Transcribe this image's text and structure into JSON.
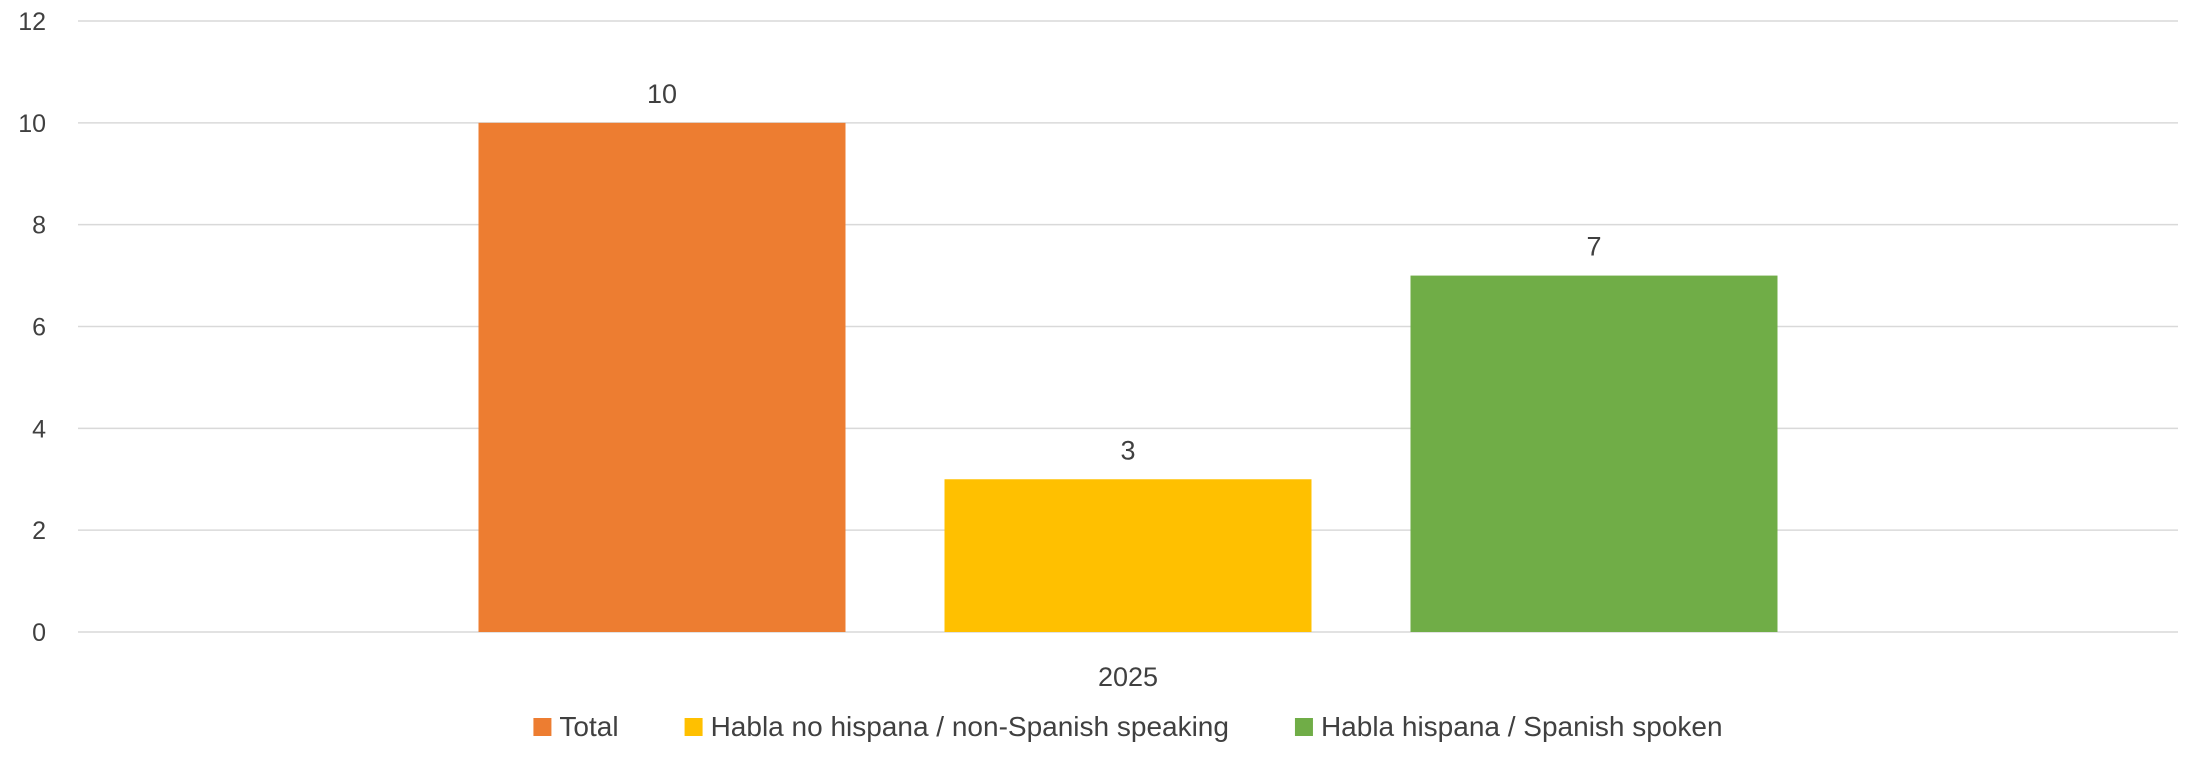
{
  "chart_data": {
    "type": "bar",
    "categories": [
      "2025"
    ],
    "series": [
      {
        "name": "Total",
        "values": [
          10
        ],
        "color": "#ED7D31"
      },
      {
        "name": "Habla no hispana / non-Spanish speaking",
        "values": [
          3
        ],
        "color": "#FFC000"
      },
      {
        "name": "Habla hispana / Spanish spoken",
        "values": [
          7
        ],
        "color": "#70AD47"
      }
    ],
    "title": "",
    "xlabel": "",
    "ylabel": "",
    "ylim": [
      0,
      12
    ],
    "yticks": [
      "0",
      "2",
      "4",
      "6",
      "8",
      "10",
      "12"
    ],
    "grid": true,
    "legend_position": "bottom",
    "data_labels": true
  }
}
